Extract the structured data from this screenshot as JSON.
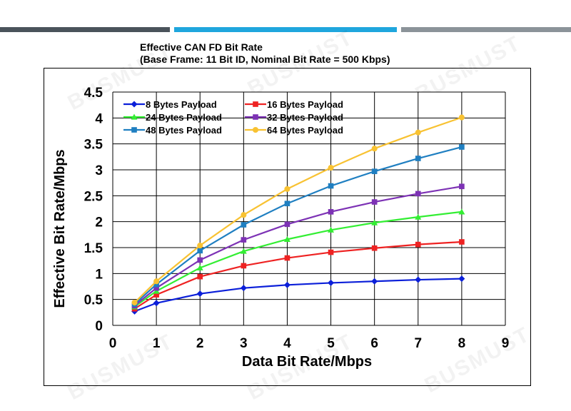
{
  "watermark": "BUSMUST",
  "chart_data": {
    "type": "line",
    "title": "Effective CAN FD Bit Rate",
    "subtitle": "(Base Frame: 11 Bit ID, Nominal Bit Rate = 500 Kbps)",
    "xlabel": "Data Bit Rate/Mbps",
    "ylabel": "Effective Bit Rate/Mbps",
    "xlim": [
      0,
      9
    ],
    "ylim": [
      0,
      4.5
    ],
    "x_ticks": [
      "0",
      "1",
      "2",
      "3",
      "4",
      "5",
      "6",
      "7",
      "8",
      "9"
    ],
    "y_ticks": [
      "0",
      "0.5",
      "1",
      "1.5",
      "2",
      "2.5",
      "3",
      "3.5",
      "4",
      "4.5"
    ],
    "x": [
      0.5,
      1,
      2,
      3,
      4,
      5,
      6,
      7,
      8
    ],
    "series": [
      {
        "name": "8 Bytes Payload",
        "color": "#0b1fd9",
        "marker": "diamond",
        "values": [
          0.27,
          0.43,
          0.61,
          0.72,
          0.78,
          0.82,
          0.85,
          0.88,
          0.9
        ]
      },
      {
        "name": "16 Bytes Payload",
        "color": "#ee2222",
        "marker": "square",
        "values": [
          0.32,
          0.59,
          0.94,
          1.15,
          1.3,
          1.41,
          1.49,
          1.56,
          1.61
        ]
      },
      {
        "name": "24 Bytes Payload",
        "color": "#33ee33",
        "marker": "triangle",
        "values": [
          0.36,
          0.66,
          1.11,
          1.43,
          1.66,
          1.84,
          1.98,
          2.09,
          2.19
        ]
      },
      {
        "name": "32 Bytes Payload",
        "color": "#7d32b5",
        "marker": "square",
        "values": [
          0.38,
          0.72,
          1.26,
          1.65,
          1.95,
          2.19,
          2.38,
          2.54,
          2.68
        ]
      },
      {
        "name": "48 Bytes Payload",
        "color": "#1f7fc1",
        "marker": "square",
        "values": [
          0.41,
          0.79,
          1.44,
          1.94,
          2.35,
          2.69,
          2.97,
          3.22,
          3.44
        ]
      },
      {
        "name": "64 Bytes Payload",
        "color": "#f8c232",
        "marker": "circle",
        "values": [
          0.44,
          0.85,
          1.54,
          2.13,
          2.63,
          3.04,
          3.41,
          3.72,
          4.01
        ]
      }
    ]
  }
}
